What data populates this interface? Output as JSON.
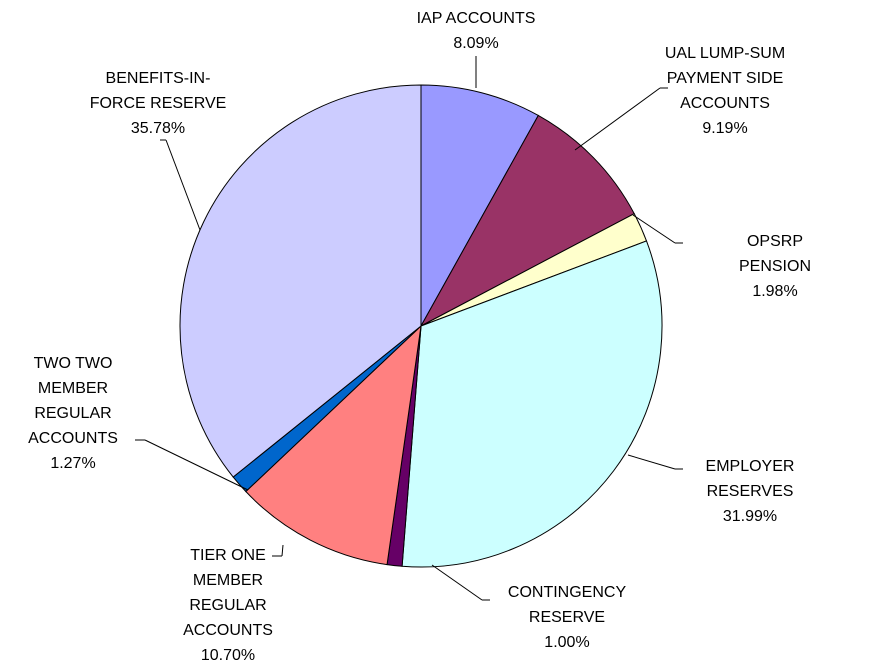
{
  "chart_data": {
    "type": "pie",
    "categories": [
      "IAP ACCOUNTS",
      "UAL LUMP-SUM\nPAYMENT SIDE\nACCOUNTS",
      "OPSRP PENSION",
      "EMPLOYER\nRESERVES",
      "CONTINGENCY\nRESERVE",
      "TIER ONE\nMEMBER\nREGULAR\nACCOUNTS",
      "TWO TWO\nMEMBER\nREGULAR\nACCOUNTS",
      "BENEFITS-IN-\nFORCE RESERVE"
    ],
    "values": [
      8.09,
      9.19,
      1.98,
      31.99,
      1.0,
      10.7,
      1.27,
      35.78
    ],
    "value_labels": [
      "8.09%",
      "9.19%",
      "1.98%",
      "31.99%",
      "1.00%",
      "10.70%",
      "1.27%",
      "35.78%"
    ],
    "colors": [
      "#9999ff",
      "#993366",
      "#ffffcc",
      "#ccffff",
      "#660066",
      "#ff8080",
      "#0066cc",
      "#ccccff"
    ]
  }
}
